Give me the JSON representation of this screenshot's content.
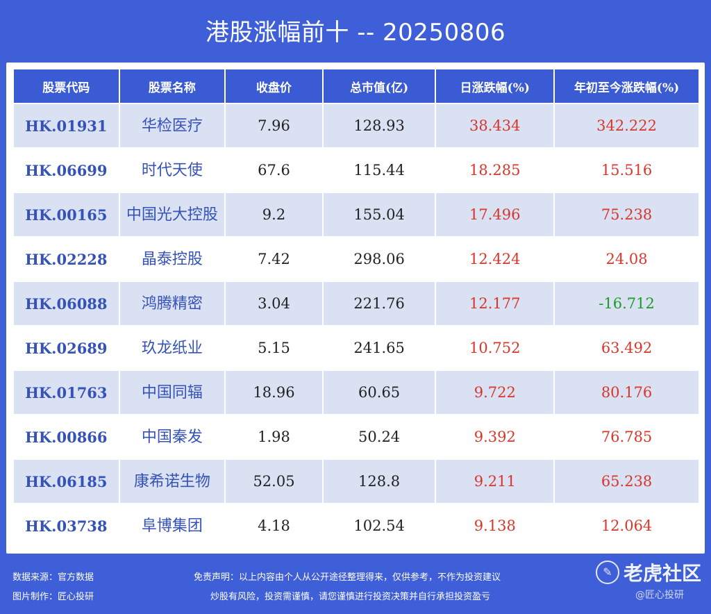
{
  "title": "港股涨幅前十 -- 20250806",
  "columns": [
    "股票代码",
    "股票名称",
    "收盘价",
    "总市值(亿)",
    "日涨跌幅(%)",
    "年初至今涨跌幅(%)"
  ],
  "rows": [
    {
      "code": "HK.01931",
      "name": "华检医疗",
      "close": "7.96",
      "mcap": "128.93",
      "day": "38.434",
      "ytd": "342.222",
      "ytd_color": "red"
    },
    {
      "code": "HK.06699",
      "name": "时代天使",
      "close": "67.6",
      "mcap": "115.44",
      "day": "18.285",
      "ytd": "15.516",
      "ytd_color": "red"
    },
    {
      "code": "HK.00165",
      "name": "中国光大控股",
      "close": "9.2",
      "mcap": "155.04",
      "day": "17.496",
      "ytd": "75.238",
      "ytd_color": "red"
    },
    {
      "code": "HK.02228",
      "name": "晶泰控股",
      "close": "7.42",
      "mcap": "298.06",
      "day": "12.424",
      "ytd": "24.08",
      "ytd_color": "red"
    },
    {
      "code": "HK.06088",
      "name": "鸿腾精密",
      "close": "3.04",
      "mcap": "221.76",
      "day": "12.177",
      "ytd": "-16.712",
      "ytd_color": "green"
    },
    {
      "code": "HK.02689",
      "name": "玖龙纸业",
      "close": "5.15",
      "mcap": "241.65",
      "day": "10.752",
      "ytd": "63.492",
      "ytd_color": "red"
    },
    {
      "code": "HK.01763",
      "name": "中国同辐",
      "close": "18.96",
      "mcap": "60.65",
      "day": "9.722",
      "ytd": "80.176",
      "ytd_color": "red"
    },
    {
      "code": "HK.00866",
      "name": "中国秦发",
      "close": "1.98",
      "mcap": "50.24",
      "day": "9.392",
      "ytd": "76.785",
      "ytd_color": "red"
    },
    {
      "code": "HK.06185",
      "name": "康希诺生物",
      "close": "52.05",
      "mcap": "128.8",
      "day": "9.211",
      "ytd": "65.238",
      "ytd_color": "red"
    },
    {
      "code": "HK.03738",
      "name": "阜博集团",
      "close": "4.18",
      "mcap": "102.54",
      "day": "9.138",
      "ytd": "12.064",
      "ytd_color": "red"
    }
  ],
  "footer": {
    "source": "数据来源：官方数据",
    "maker": "图片制作：匠心投研",
    "disclaimer1": "免责声明：以上内容由个人从公开途径整理得来，仅供参考，不作为投资建议",
    "disclaimer2": "炒股有风险，投资需谨慎，请您谨慎进行投资决策并自行承担投资盈亏",
    "watermark": "老虎社区",
    "watermark_sub": "@匠心投研"
  },
  "colors": {
    "background": "#3f5fd9",
    "header": "#3b5bd4",
    "code_text": "#3552b8",
    "positive": "#d9362b",
    "negative": "#1c9a2a",
    "stripe": "#d9e1f2"
  }
}
